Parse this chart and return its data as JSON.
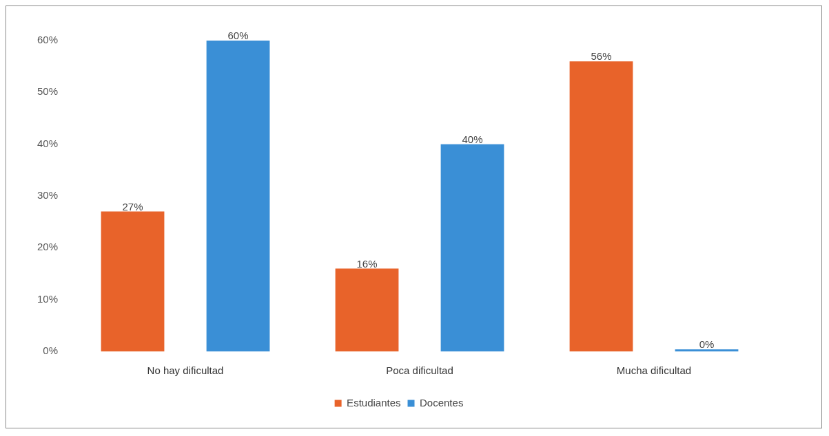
{
  "chart_data": {
    "type": "bar",
    "categories": [
      "No hay dificultad",
      "Poca dificultad",
      "Mucha dificultad"
    ],
    "series": [
      {
        "name": "Estudiantes",
        "color": "#e8632a",
        "values": [
          27,
          16,
          56
        ],
        "value_labels": [
          "27%",
          "16%",
          "56%"
        ]
      },
      {
        "name": "Docentes",
        "color": "#3a8fd6",
        "values": [
          60,
          40,
          0
        ],
        "value_labels": [
          "60%",
          "40%",
          "0%"
        ]
      }
    ],
    "ylim": [
      0,
      60
    ],
    "yticks": [
      {
        "value": 0,
        "label": "0%"
      },
      {
        "value": 10,
        "label": "10%"
      },
      {
        "value": 20,
        "label": "20%"
      },
      {
        "value": 30,
        "label": "30%"
      },
      {
        "value": 40,
        "label": "40%"
      },
      {
        "value": 50,
        "label": "50%"
      },
      {
        "value": 60,
        "label": "60%"
      }
    ],
    "grid": false,
    "legend": "bottom"
  }
}
